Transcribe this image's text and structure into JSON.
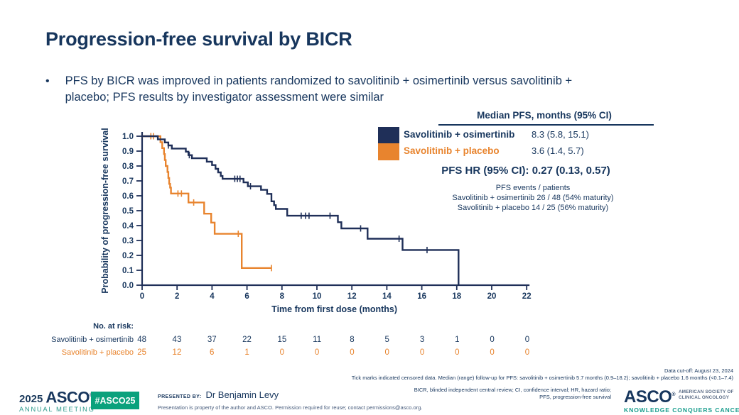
{
  "slide": {
    "title": "Progression-free survival by BICR",
    "bullet_marker": "•",
    "bullet": "PFS by BICR was improved in patients randomized to savolitinib + osimertinib versus savolitinib + placebo; PFS results by investigator assessment were similar"
  },
  "colors": {
    "navy_text": "#17365D",
    "curve_navy": "#1F2F58",
    "curve_orange": "#E8842E",
    "teal": "#2F9C8E",
    "badge_green": "#0AA17C"
  },
  "legend": {
    "header": "Median PFS, months (95% CI)",
    "rows": [
      {
        "label": "Savolitinib + osimertinib",
        "value": "8.3 (5.8, 15.1)",
        "color": "#1F2F58"
      },
      {
        "label": "Savolitinib + placebo",
        "value": "3.6 (1.4, 5.7)",
        "color": "#E8842E"
      }
    ],
    "hr_line": "PFS HR (95% CI): 0.27 (0.13, 0.57)",
    "events_title": "PFS events / patients",
    "events_line1": "Savolitinib + osimertinib 26 / 48 (54% maturity)",
    "events_line2": "Savolitinib + placebo 14 / 25 (56% maturity)"
  },
  "chart_data": {
    "type": "line",
    "subtype": "kaplan-meier-step",
    "title": "",
    "xlabel": "Time from first dose (months)",
    "ylabel": "Probability of progression-free survival",
    "xlim": [
      0,
      22
    ],
    "ylim": [
      0.0,
      1.0
    ],
    "xticks": [
      0,
      2,
      4,
      6,
      8,
      10,
      12,
      14,
      16,
      18,
      20,
      22
    ],
    "yticks": [
      0.0,
      0.1,
      0.2,
      0.3,
      0.4,
      0.5,
      0.6,
      0.7,
      0.8,
      0.9,
      1.0
    ],
    "grid": false,
    "legend_position": "top-right-table",
    "series": [
      {
        "name": "Savolitinib + placebo",
        "color": "#E8842E",
        "steps": [
          [
            0,
            1.0
          ],
          [
            1.05,
            0.96
          ],
          [
            1.15,
            0.92
          ],
          [
            1.25,
            0.88
          ],
          [
            1.3,
            0.84
          ],
          [
            1.35,
            0.8
          ],
          [
            1.45,
            0.76
          ],
          [
            1.5,
            0.72
          ],
          [
            1.55,
            0.68
          ],
          [
            1.6,
            0.655
          ],
          [
            1.65,
            0.615
          ],
          [
            2.65,
            0.555
          ],
          [
            3.55,
            0.48
          ],
          [
            3.95,
            0.42
          ],
          [
            4.15,
            0.345
          ],
          [
            5.7,
            0.115
          ]
        ],
        "end_x": 7.4,
        "censors": [
          [
            0.5,
            1.0
          ],
          [
            0.65,
            1.0
          ],
          [
            2.05,
            0.615
          ],
          [
            2.25,
            0.615
          ],
          [
            2.95,
            0.555
          ],
          [
            5.5,
            0.345
          ],
          [
            7.4,
            0.115
          ]
        ]
      },
      {
        "name": "Savolitinib + osimertinib",
        "color": "#1F2F58",
        "steps": [
          [
            0,
            1.0
          ],
          [
            0.9,
            0.979
          ],
          [
            1.3,
            0.958
          ],
          [
            1.5,
            0.938
          ],
          [
            1.7,
            0.917
          ],
          [
            2.5,
            0.896
          ],
          [
            2.65,
            0.873
          ],
          [
            2.85,
            0.852
          ],
          [
            3.7,
            0.829
          ],
          [
            4.0,
            0.806
          ],
          [
            4.2,
            0.781
          ],
          [
            4.35,
            0.757
          ],
          [
            4.5,
            0.733
          ],
          [
            4.6,
            0.714
          ],
          [
            5.8,
            0.69
          ],
          [
            6.05,
            0.664
          ],
          [
            6.8,
            0.64
          ],
          [
            7.15,
            0.613
          ],
          [
            7.4,
            0.563
          ],
          [
            7.55,
            0.537
          ],
          [
            7.65,
            0.512
          ],
          [
            8.3,
            0.466
          ],
          [
            11.2,
            0.423
          ],
          [
            11.4,
            0.381
          ],
          [
            12.9,
            0.312
          ],
          [
            14.9,
            0.236
          ],
          [
            18.1,
            0.0
          ]
        ],
        "end_x": 18.1,
        "censors": [
          [
            1.5,
            0.938
          ],
          [
            2.7,
            0.873
          ],
          [
            5.3,
            0.714
          ],
          [
            5.45,
            0.714
          ],
          [
            5.6,
            0.714
          ],
          [
            6.2,
            0.664
          ],
          [
            9.1,
            0.466
          ],
          [
            9.35,
            0.466
          ],
          [
            9.55,
            0.466
          ],
          [
            10.75,
            0.466
          ],
          [
            12.5,
            0.381
          ],
          [
            14.7,
            0.312
          ],
          [
            16.3,
            0.236
          ]
        ]
      }
    ]
  },
  "risk_table": {
    "title": "No. at risk:",
    "timepoints": [
      0,
      2,
      4,
      6,
      8,
      10,
      12,
      14,
      16,
      18,
      20,
      22
    ],
    "rows": [
      {
        "label": "Savolitinib + osimertinib",
        "color": "#17365D",
        "values": [
          48,
          43,
          37,
          22,
          15,
          11,
          8,
          5,
          3,
          1,
          0,
          0
        ]
      },
      {
        "label": "Savolitinib + placebo",
        "color": "#E8842E",
        "values": [
          25,
          12,
          6,
          1,
          0,
          0,
          0,
          0,
          0,
          0,
          0,
          0
        ]
      }
    ]
  },
  "footnotes": {
    "cutoff": "Data cut-off: August 23, 2024",
    "ticknote": "Tick marks indicated censored data. Median (range) follow-up for PFS: savolitinib + osimertinib 5.7 months (0.9–18.2); savolitinib + placebo 1.6 months (<0.1–7.4)",
    "abbrev1": "BICR, blinded independent central review; CI, confidence interval; HR, hazard ratio;",
    "abbrev2": "PFS, progression-free survival"
  },
  "footer": {
    "year": "2025",
    "asco": "ASCO",
    "reg": "®",
    "annual": "ANNUAL MEETING",
    "hashtag": "#ASCO25",
    "presented_by": "PRESENTED BY:",
    "presenter": "Dr Benjamin Levy",
    "fineprint": "Presentation is property of the author and ASCO. Permission required for reuse; contact permissions@asco.org.",
    "asco_right": "ASCO",
    "society1": "AMERICAN SOCIETY OF",
    "society2": "CLINICAL ONCOLOGY",
    "tagline": "KNOWLEDGE CONQUERS CANCER"
  }
}
